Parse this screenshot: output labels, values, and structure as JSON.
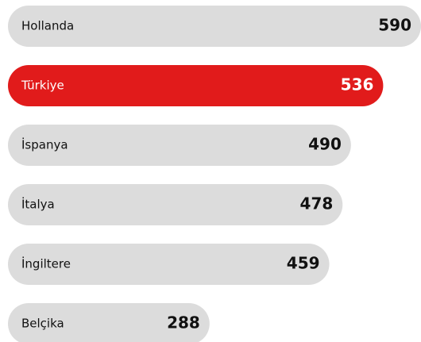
{
  "chart_data": {
    "type": "bar",
    "orientation": "horizontal",
    "categories": [
      "Hollanda",
      "Türkiye",
      "İspanya",
      "İtalya",
      "İngiltere",
      "Belçika"
    ],
    "values": [
      590,
      536,
      490,
      478,
      459,
      288
    ],
    "colors": [
      "#dcdcdc",
      "#e11b1b",
      "#dcdcdc",
      "#dcdcdc",
      "#dcdcdc",
      "#dcdcdc"
    ],
    "text_colors": [
      "#111111",
      "#ffffff",
      "#111111",
      "#111111",
      "#111111",
      "#111111"
    ]
  }
}
